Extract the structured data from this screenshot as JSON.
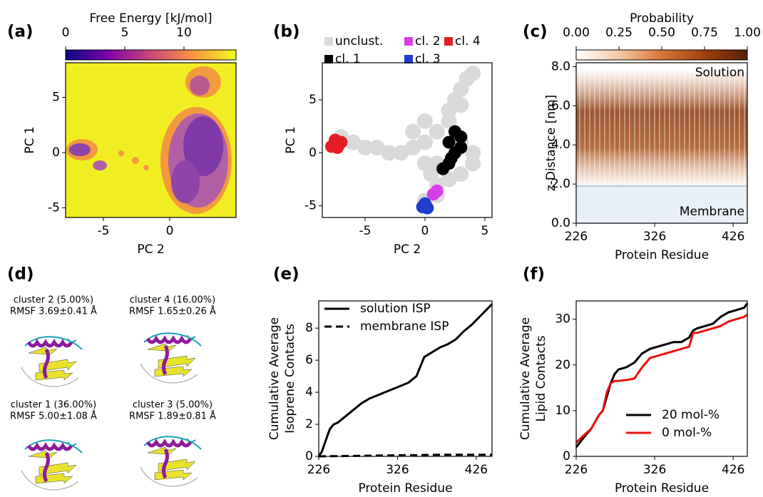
{
  "chart_data": [
    {
      "type": "heatmap",
      "label": "(a)",
      "xlabel": "PC 2",
      "ylabel": [
        "PC 1"
      ],
      "xlim": [
        -7.85,
        5
      ],
      "ylim": [
        -5.87,
        8.13
      ],
      "xticks": [
        -5,
        0
      ],
      "yticks": [
        -5,
        0,
        5
      ],
      "ctitle": "Free Energy [kJ/mol]",
      "clim": [
        0,
        14.4
      ],
      "cticks": [
        0,
        5,
        10
      ],
      "colormap": [
        "#0d0887",
        "#7e03a8",
        "#cc4778",
        "#f89540",
        "#f0f921"
      ]
    },
    {
      "type": "scatter",
      "label": "(b)",
      "xlabel": "PC 2",
      "ylabel": [
        "PC 1"
      ],
      "xlim": [
        -8.57,
        5.6
      ],
      "ylim": [
        -6.1,
        8.5
      ],
      "xticks": [
        -5,
        0,
        5
      ],
      "yticks": [
        -5,
        0,
        5
      ],
      "series": [
        {
          "name": "unclust.",
          "color": "#dadada",
          "x": [
            -7,
            -6,
            -5,
            -4,
            -3,
            -2,
            -1,
            -1,
            0,
            0,
            0,
            0.5,
            1,
            1,
            0,
            1,
            2,
            2,
            2.5,
            3,
            3.5,
            4,
            3,
            4,
            4,
            3,
            2,
            1,
            3
          ],
          "y": [
            1.5,
            1,
            0.5,
            0.5,
            0,
            0,
            0.5,
            2,
            3,
            1,
            -1,
            -2,
            -3,
            -4,
            -4.5,
            2,
            3,
            4,
            5,
            6,
            7,
            7.5,
            1,
            0,
            -1,
            -2,
            -2.5,
            -1,
            4.5
          ]
        },
        {
          "name": "cl. 2",
          "color": "#d63ee6",
          "x": [
            1,
            0.7
          ],
          "y": [
            -3.6,
            -3.9
          ]
        },
        {
          "name": "cl. 4",
          "color": "#e41e26",
          "x": [
            -7.5,
            -7.3,
            -7,
            -7.8
          ],
          "y": [
            1.2,
            0.5,
            1,
            0.6
          ]
        },
        {
          "name": "cl. 1",
          "color": "#000000",
          "x": [
            2,
            2.5,
            3,
            2.5,
            2,
            1.5,
            3,
            2.2
          ],
          "y": [
            1,
            2,
            1.5,
            0,
            -1,
            -1.5,
            0.5,
            -0.5
          ]
        },
        {
          "name": "cl. 3",
          "color": "#1f3ed0",
          "x": [
            0,
            -0.2,
            0.2
          ],
          "y": [
            -4.8,
            -5.1,
            -5.2
          ]
        }
      ]
    },
    {
      "type": "heatmap",
      "label": "(c)",
      "xlabel": "Protein Residue",
      "ylabel": [
        "z-Distance [nm]"
      ],
      "xlim": [
        226,
        444
      ],
      "ylim": [
        0,
        8.2
      ],
      "xticks": [
        226,
        326,
        426
      ],
      "yticks": [
        {
          "value": 0,
          "label": "0.0"
        },
        {
          "value": 2,
          "label": "2.0"
        },
        {
          "value": 4,
          "label": "4.0"
        },
        {
          "value": 6,
          "label": "6.0"
        },
        {
          "value": 8,
          "label": "8.0"
        }
      ],
      "ctitle": "Probability",
      "clim": [
        0,
        1
      ],
      "cticks": [
        {
          "value": 0,
          "label": "0.00"
        },
        {
          "value": 0.25,
          "label": "0.25"
        },
        {
          "value": 0.5,
          "label": "0.50"
        },
        {
          "value": 0.75,
          "label": "0.75"
        },
        {
          "value": 1,
          "label": "1.00"
        }
      ],
      "colormap": [
        "#ffffff",
        "#f6c9a6",
        "#d8753a",
        "#a0400f",
        "#5a1e05"
      ],
      "membrane_level": 1.9,
      "annotations": [
        "Solution",
        "Membrane"
      ]
    },
    {
      "type": "line",
      "label": "(e)",
      "xlabel": "Protein Residue",
      "ylabel": [
        "Cumulative Average",
        "Isoprene Contacts"
      ],
      "xlim": [
        226,
        446
      ],
      "ylim": [
        0,
        9.7
      ],
      "xticks": [
        226,
        326,
        426
      ],
      "yticks": [
        0,
        2,
        4,
        6,
        8
      ],
      "series": [
        {
          "name": "solution ISP",
          "color": "#000000",
          "dash": false,
          "x": [
            226,
            230,
            235,
            240,
            245,
            250,
            260,
            270,
            280,
            290,
            300,
            310,
            320,
            330,
            340,
            350,
            355,
            360,
            370,
            380,
            390,
            400,
            410,
            420,
            430,
            440,
            446
          ],
          "y": [
            0,
            0.3,
            1.0,
            1.7,
            2.0,
            2.1,
            2.5,
            2.9,
            3.3,
            3.6,
            3.8,
            4.0,
            4.2,
            4.4,
            4.6,
            5.0,
            5.6,
            6.2,
            6.5,
            6.8,
            7.0,
            7.3,
            7.8,
            8.2,
            8.7,
            9.2,
            9.5
          ]
        },
        {
          "name": "membrane ISP",
          "color": "#000000",
          "dash": true,
          "x": [
            226,
            300,
            380,
            446
          ],
          "y": [
            0,
            0.05,
            0.1,
            0.1
          ]
        }
      ]
    },
    {
      "type": "line",
      "label": "(f)",
      "xlabel": "Protein Residue",
      "ylabel": [
        "Cumulative Average",
        "Lipid Contacts"
      ],
      "xlim": [
        226,
        444
      ],
      "ylim": [
        0,
        34
      ],
      "xticks": [
        226,
        326,
        426
      ],
      "yticks": [
        0,
        10,
        20,
        30
      ],
      "series": [
        {
          "name": "20 mol-%",
          "color": "#000000",
          "dash": false,
          "x": [
            226,
            235,
            245,
            255,
            260,
            265,
            270,
            275,
            280,
            290,
            300,
            310,
            320,
            330,
            340,
            350,
            360,
            370,
            375,
            380,
            390,
            400,
            410,
            420,
            430,
            440,
            444
          ],
          "y": [
            2,
            4,
            6,
            9,
            10,
            13,
            16,
            18,
            19,
            19.5,
            20.5,
            22.5,
            23.5,
            24,
            24.5,
            25,
            25,
            26,
            27.5,
            28,
            28.5,
            29,
            30.5,
            31.5,
            32,
            32.5,
            33.5
          ]
        },
        {
          "name": "0 mol-%",
          "color": "#ee1111",
          "dash": false,
          "x": [
            226,
            235,
            245,
            255,
            260,
            265,
            270,
            275,
            280,
            290,
            300,
            310,
            320,
            330,
            340,
            350,
            360,
            370,
            375,
            380,
            390,
            400,
            410,
            420,
            430,
            440,
            444
          ],
          "y": [
            3,
            4.5,
            6,
            9,
            10,
            14,
            16,
            16.5,
            16.5,
            16.7,
            17,
            19.5,
            21.5,
            22,
            22.5,
            23,
            23.5,
            24,
            27,
            27,
            27.5,
            28,
            28.5,
            29.5,
            30,
            30.5,
            31
          ]
        }
      ]
    }
  ],
  "panel_d": {
    "label": "(d)",
    "clusters": [
      {
        "title": "cluster 2 (5.00%)",
        "rmsf": "RMSF 3.69±0.41 Å"
      },
      {
        "title": "cluster 4 (16.00%)",
        "rmsf": "RMSF 1.65±0.26 Å"
      },
      {
        "title": "cluster 1 (36.00%)",
        "rmsf": "RMSF 5.00±1.08 Å"
      },
      {
        "title": "cluster 3 (5.00%)",
        "rmsf": "RMSF 1.89±0.81 Å"
      }
    ]
  }
}
